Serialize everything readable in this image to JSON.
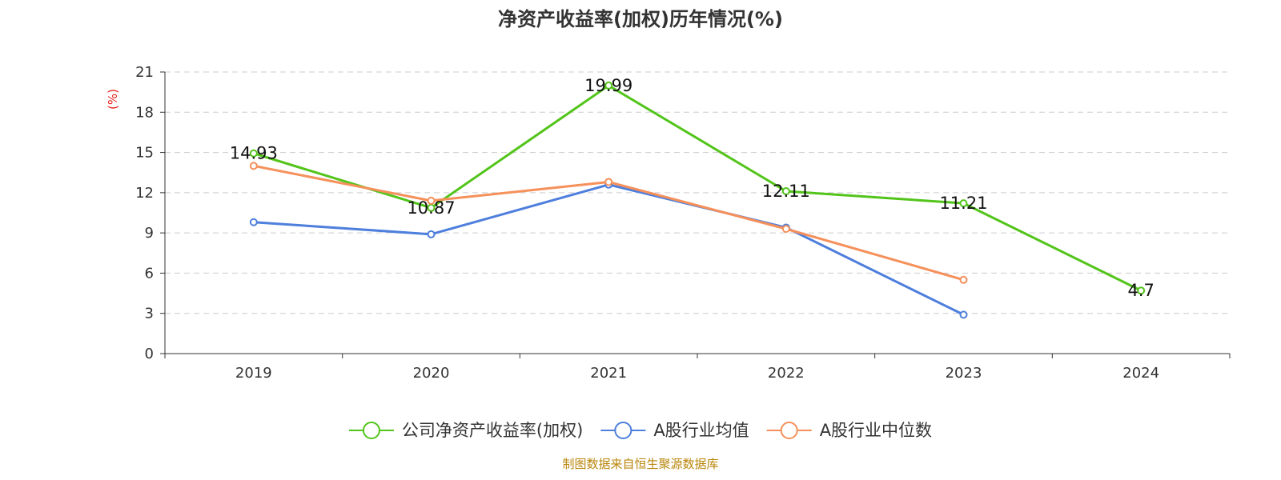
{
  "colors": {
    "company": "#52c41a",
    "avg": "#4e7fdd",
    "median": "#f5905a",
    "axis": "#333333",
    "grid": "#cccccc",
    "unit": "#e8231c",
    "source": "#b8860b"
  },
  "icons": {
    "legend_marker": "circle-line-icon"
  },
  "source_text": "制图数据来自恒生聚源数据库",
  "chart_data": {
    "type": "line",
    "title": "净资产收益率(加权)历年情况(%)",
    "xlabel": "",
    "ylabel": "(%)",
    "categories": [
      "2019",
      "2020",
      "2021",
      "2022",
      "2023",
      "2024"
    ],
    "ylim": [
      0,
      21
    ],
    "yticks": [
      0,
      3,
      6,
      9,
      12,
      15,
      18,
      21
    ],
    "grid": true,
    "legend_position": "bottom",
    "series": [
      {
        "name": "公司净资产收益率(加权)",
        "color_key": "company",
        "values": [
          14.93,
          10.87,
          19.99,
          12.11,
          11.21,
          4.7
        ],
        "labels": [
          "14.93",
          "10.87",
          "19.99",
          "12.11",
          "11.21",
          "4.7"
        ]
      },
      {
        "name": "A股行业均值",
        "color_key": "avg",
        "values": [
          9.8,
          8.9,
          12.6,
          9.4,
          2.9,
          null
        ]
      },
      {
        "name": "A股行业中位数",
        "color_key": "median",
        "values": [
          14.0,
          11.4,
          12.8,
          9.3,
          5.5,
          null
        ]
      }
    ]
  }
}
